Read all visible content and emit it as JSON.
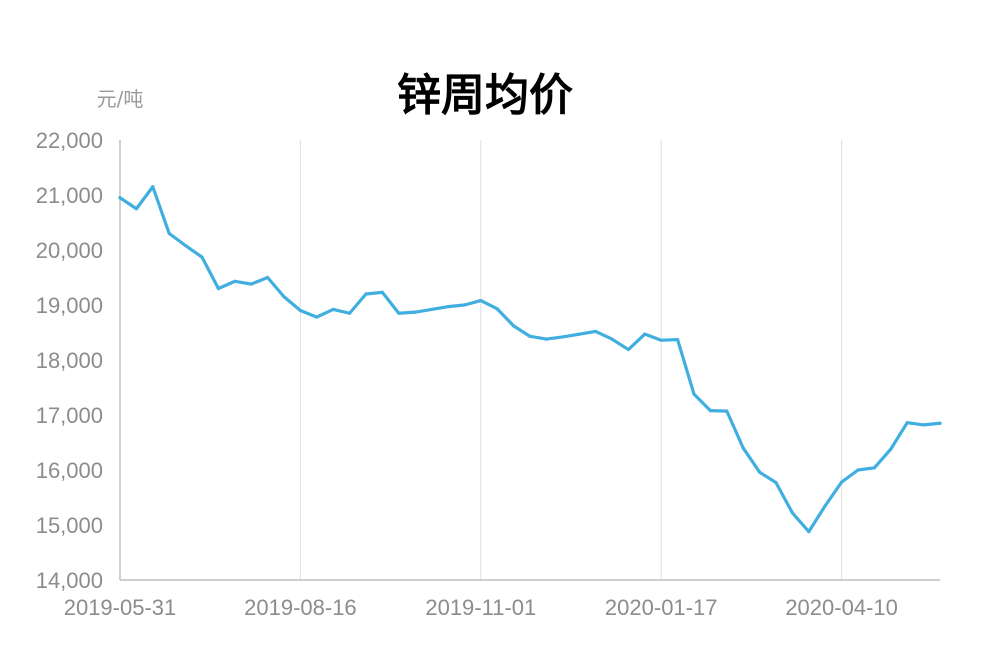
{
  "chart_data": {
    "type": "line",
    "title": "锌周均价",
    "unit_label": "元/吨",
    "xlabel": "",
    "ylabel": "",
    "ylim": [
      14000,
      22000
    ],
    "y_ticks": [
      "14,000",
      "15,000",
      "16,000",
      "17,000",
      "18,000",
      "19,000",
      "20,000",
      "21,000",
      "22,000"
    ],
    "x_tick_labels": [
      "2019-05-31",
      "2019-08-16",
      "2019-11-01",
      "2020-01-17",
      "2020-04-10"
    ],
    "grid": "vertical",
    "legend": "none",
    "line_color": "#41aee0",
    "series": [
      {
        "values": [
          20950,
          20750,
          21150,
          20300,
          20080,
          19870,
          19300,
          19430,
          19380,
          19500,
          19150,
          18900,
          18780,
          18920,
          18850,
          19200,
          19230,
          18850,
          18870,
          18920,
          18970,
          19000,
          19080,
          18930,
          18620,
          18430,
          18380,
          18420,
          18470,
          18520,
          18380,
          18190,
          18470,
          18360,
          18370,
          17380,
          17080,
          17070,
          16400,
          15960,
          15770,
          15220,
          14880,
          15350,
          15780,
          16000,
          16040,
          16380,
          16860,
          16820,
          16850
        ]
      }
    ]
  }
}
